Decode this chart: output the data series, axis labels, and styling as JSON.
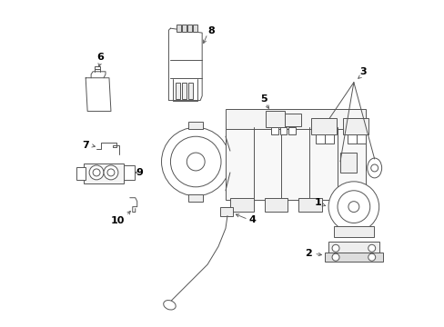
{
  "bg_color": "#ffffff",
  "line_color": "#555555",
  "label_color": "#000000",
  "figsize": [
    4.89,
    3.6
  ],
  "dpi": 100,
  "lw": 0.7
}
